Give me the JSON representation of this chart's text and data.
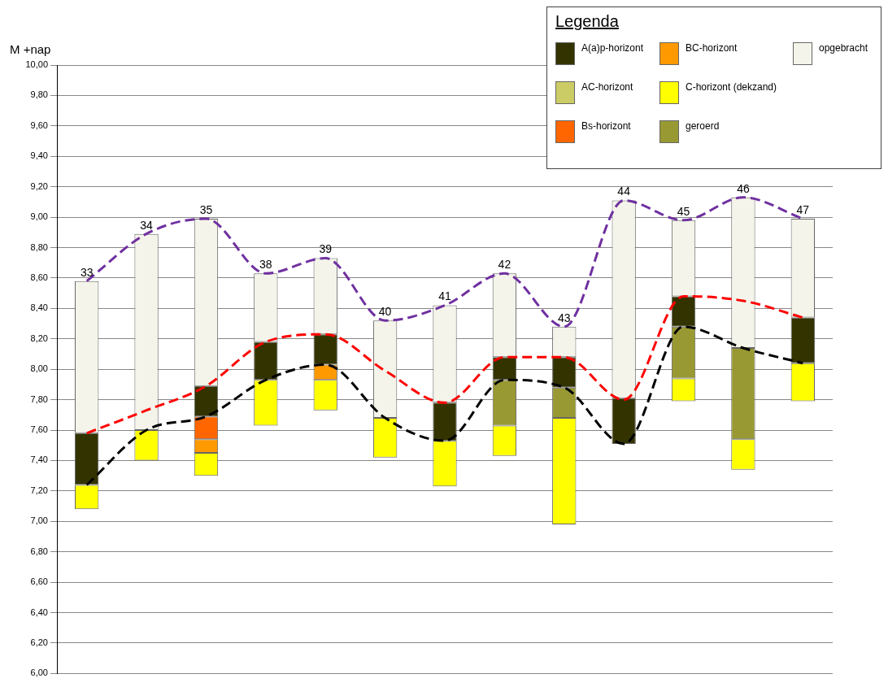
{
  "chart_data": {
    "type": "bar",
    "ylabel": "M +nap",
    "legend_title": "Legenda",
    "legend": "top right",
    "grid": "y",
    "marker": "none",
    "categories": [
      "33",
      "34",
      "35",
      "38",
      "39",
      "40",
      "41",
      "42",
      "43",
      "44",
      "45",
      "46",
      "47"
    ],
    "ylim": [
      6,
      10
    ],
    "yticks": [
      {
        "value": 6,
        "label": "6,00"
      },
      {
        "value": 6.2,
        "label": "6,20"
      },
      {
        "value": 6.4,
        "label": "6,40"
      },
      {
        "value": 6.6,
        "label": "6,60"
      },
      {
        "value": 6.8,
        "label": "6,80"
      },
      {
        "value": 7,
        "label": "7,00"
      },
      {
        "value": 7.2,
        "label": "7,20"
      },
      {
        "value": 7.4,
        "label": "7,40"
      },
      {
        "value": 7.6,
        "label": "7,60"
      },
      {
        "value": 7.8,
        "label": "7,80"
      },
      {
        "value": 8,
        "label": "8,00"
      },
      {
        "value": 8.2,
        "label": "8,20"
      },
      {
        "value": 8.4,
        "label": "8,40"
      },
      {
        "value": 8.6,
        "label": "8,60"
      },
      {
        "value": 8.8,
        "label": "8,80"
      },
      {
        "value": 9,
        "label": "9,00"
      },
      {
        "value": 9.2,
        "label": "9,20"
      },
      {
        "value": 9.4,
        "label": "9,40"
      },
      {
        "value": 9.6,
        "label": "9,60"
      },
      {
        "value": 9.8,
        "label": "9,80"
      },
      {
        "value": 10,
        "label": "10,00"
      }
    ],
    "series": [
      {
        "name": "A(a)p-horizont",
        "color": "#333300",
        "base": [
          7.24,
          null,
          7.69,
          7.93,
          8.03,
          null,
          7.53,
          7.93,
          7.88,
          7.51,
          8.28,
          null,
          8.04
        ],
        "values": [
          0.34,
          null,
          0.2,
          0.25,
          0.2,
          null,
          0.25,
          0.15,
          0.2,
          0.3,
          0.2,
          null,
          0.3
        ]
      },
      {
        "name": "AC-horizont",
        "color": "#cccc66",
        "base": [
          null,
          null,
          null,
          null,
          null,
          null,
          null,
          null,
          null,
          null,
          null,
          null,
          null
        ],
        "values": [
          null,
          null,
          null,
          null,
          null,
          null,
          null,
          null,
          null,
          null,
          null,
          null,
          null
        ]
      },
      {
        "name": "Bs-horizont",
        "color": "#ff6600",
        "base": [
          null,
          null,
          7.54,
          null,
          null,
          null,
          null,
          null,
          null,
          null,
          null,
          null,
          null
        ],
        "values": [
          null,
          null,
          0.15,
          null,
          null,
          null,
          null,
          null,
          null,
          null,
          null,
          null,
          null
        ]
      },
      {
        "name": "BC-horizont",
        "color": "#ff9900",
        "base": [
          null,
          null,
          7.45,
          null,
          7.93,
          null,
          null,
          null,
          null,
          null,
          null,
          null,
          null
        ],
        "values": [
          null,
          null,
          0.09,
          null,
          0.1,
          null,
          null,
          null,
          null,
          null,
          null,
          null,
          null
        ]
      },
      {
        "name": "C-horizont (dekzand)",
        "color": "#ffff00",
        "base": [
          7.08,
          7.4,
          7.3,
          7.63,
          7.73,
          7.42,
          7.23,
          7.43,
          6.98,
          null,
          7.79,
          7.34,
          7.79
        ],
        "values": [
          0.16,
          0.2,
          0.15,
          0.3,
          0.2,
          0.26,
          0.3,
          0.2,
          0.7,
          null,
          0.15,
          0.2,
          0.25
        ]
      },
      {
        "name": "geroerd",
        "color": "#999933",
        "base": [
          null,
          null,
          null,
          null,
          null,
          null,
          null,
          7.63,
          7.68,
          null,
          7.94,
          7.54,
          null
        ],
        "values": [
          null,
          null,
          null,
          null,
          null,
          null,
          null,
          0.3,
          0.2,
          null,
          0.34,
          0.6,
          null
        ]
      },
      {
        "name": "opgebracht",
        "color": "#f4f4ea",
        "base": [
          7.58,
          7.6,
          7.89,
          8.18,
          8.23,
          7.68,
          7.78,
          8.08,
          8.08,
          7.81,
          8.48,
          8.14,
          8.34
        ],
        "values": [
          1.0,
          1.29,
          1.1,
          0.45,
          0.5,
          0.64,
          0.64,
          0.55,
          0.2,
          1.3,
          0.5,
          0.99,
          0.65
        ]
      },
      {
        "type": "line",
        "color": "#7030a0",
        "line_style": "dashed",
        "values": [
          8.58,
          8.89,
          8.99,
          8.63,
          8.73,
          8.32,
          8.42,
          8.63,
          8.28,
          9.11,
          8.98,
          9.13,
          8.99
        ]
      },
      {
        "type": "line",
        "color": "#ff0000",
        "line_style": "dashed",
        "values": [
          7.58,
          7.73,
          7.89,
          8.18,
          8.23,
          7.99,
          7.78,
          8.08,
          8.08,
          7.8,
          8.48,
          8.45,
          8.34
        ]
      },
      {
        "type": "line",
        "color": "#000000",
        "line_style": "dashed",
        "values": [
          7.24,
          7.6,
          7.69,
          7.93,
          8.03,
          7.68,
          7.53,
          7.93,
          7.88,
          7.51,
          8.28,
          8.14,
          8.04
        ]
      }
    ]
  }
}
